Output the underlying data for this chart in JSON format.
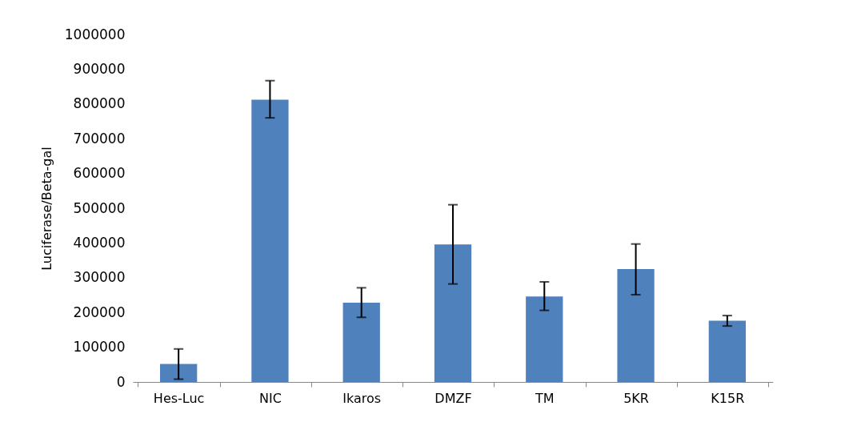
{
  "chart_data": {
    "type": "bar",
    "ylabel": "Luciferase/Beta-gal",
    "categories": [
      "Hes-Luc",
      "NIC",
      "Ikaros",
      "DMZF",
      "TM",
      "5KR",
      "K15R"
    ],
    "values": [
      52000,
      812000,
      228000,
      396000,
      246000,
      325000,
      176000
    ],
    "errors": [
      [
        8000,
        95000
      ],
      [
        760000,
        867000
      ],
      [
        186000,
        271000
      ],
      [
        282000,
        510000
      ],
      [
        206000,
        288000
      ],
      [
        251000,
        397000
      ],
      [
        161000,
        191000
      ]
    ],
    "color": "#4f81bd",
    "ylim": [
      0,
      1000000
    ],
    "yticks": [
      0,
      100000,
      200000,
      300000,
      400000,
      500000,
      600000,
      700000,
      800000,
      900000,
      1000000
    ],
    "grid": false
  }
}
